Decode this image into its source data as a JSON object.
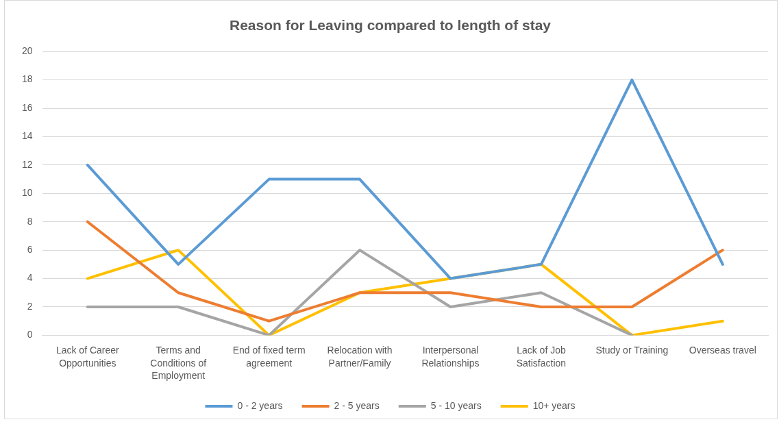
{
  "chart_data": {
    "type": "line",
    "title": "Reason for Leaving compared to length of stay",
    "categories": [
      "Lack of Career Opportunities",
      "Terms and Conditions of Employment",
      "End of fixed term agreement",
      "Relocation with Partner/Family",
      "Interpersonal Relationships",
      "Lack of Job Satisfaction",
      "Study or Training",
      "Overseas travel"
    ],
    "series": [
      {
        "name": "0 - 2 years",
        "color": "#5b9bd5",
        "values": [
          12,
          5,
          11,
          11,
          4,
          5,
          18,
          5
        ]
      },
      {
        "name": "2 - 5 years",
        "color": "#ed7d31",
        "values": [
          8,
          3,
          1,
          3,
          3,
          2,
          2,
          6
        ]
      },
      {
        "name": "5 - 10 years",
        "color": "#a5a5a5",
        "values": [
          2,
          2,
          0,
          6,
          2,
          3,
          0,
          null
        ]
      },
      {
        "name": "10+ years",
        "color": "#ffc000",
        "values": [
          4,
          6,
          0,
          3,
          4,
          5,
          0,
          1
        ]
      }
    ],
    "ylim": [
      0,
      20
    ],
    "yticks": [
      0,
      2,
      4,
      6,
      8,
      10,
      12,
      14,
      16,
      18,
      20
    ],
    "grid": "y",
    "legend": "bottom",
    "marker": "none",
    "line_style": "solid"
  }
}
